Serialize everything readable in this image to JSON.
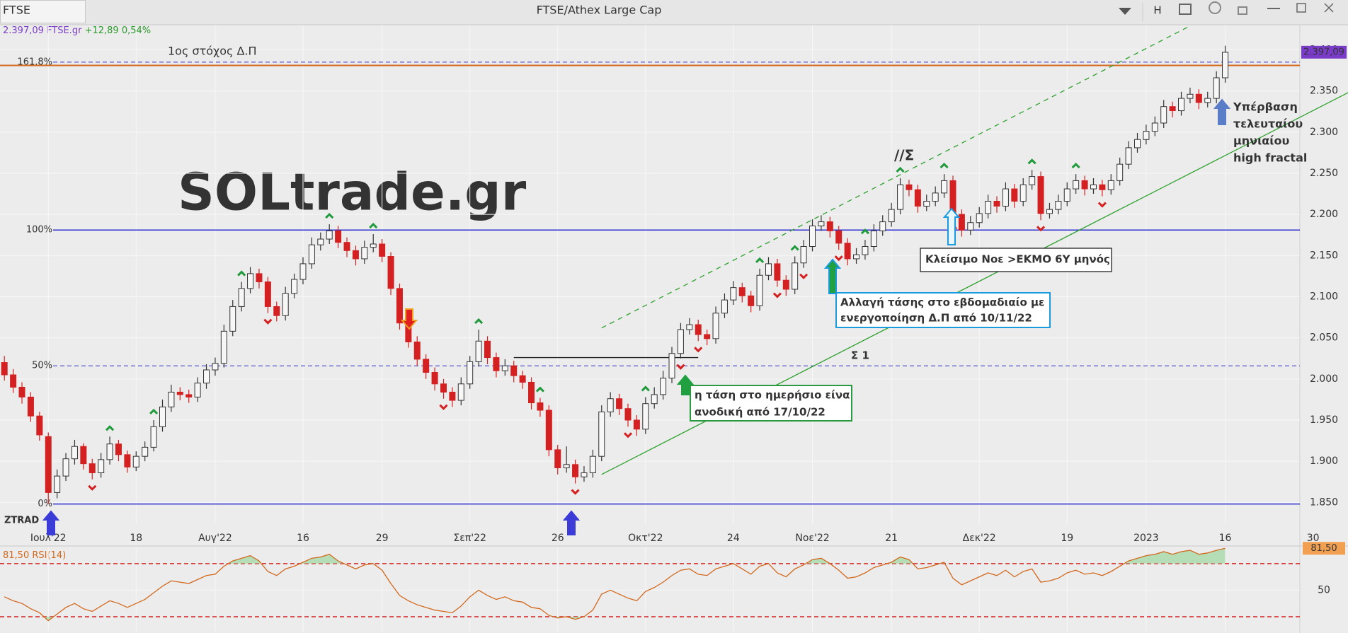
{
  "toolbar": {
    "symbol": "FTSE",
    "title": "FTSE/Athex Large Cap",
    "interval": "H"
  },
  "chart_data": {
    "type": "candlestick",
    "quote": {
      "last": {
        "value": 2397.09,
        "label": "2.397,09"
      },
      "symbol": "FTSE.gr",
      "change": {
        "value": 12.89,
        "label": "+12,89"
      },
      "change_pct": {
        "value": 0.54,
        "label": "0,54%"
      }
    },
    "watermark": "SOLtrade.gr",
    "watermark2": "ZTRAD",
    "xlim": [
      -0.5,
      147.5
    ],
    "xticks": [
      {
        "value": 5,
        "label": "Ιουλ'22"
      },
      {
        "value": 15,
        "label": "18"
      },
      {
        "value": 24,
        "label": "Αυγ'22"
      },
      {
        "value": 34,
        "label": "16"
      },
      {
        "value": 43,
        "label": "29"
      },
      {
        "value": 53,
        "label": "Σεπ'22"
      },
      {
        "value": 63,
        "label": "26"
      },
      {
        "value": 73,
        "label": "Οκτ'22"
      },
      {
        "value": 83,
        "label": "24"
      },
      {
        "value": 92,
        "label": "Νοε'22"
      },
      {
        "value": 101,
        "label": "21"
      },
      {
        "value": 111,
        "label": "Δεκ'22"
      },
      {
        "value": 121,
        "label": "19"
      },
      {
        "value": 130,
        "label": "2023"
      },
      {
        "value": 139,
        "label": "16"
      },
      {
        "value": 149,
        "label": "30"
      }
    ],
    "ylim": [
      1824.5,
      2429.6
    ],
    "yticks": [
      {
        "value": 1850,
        "label": "1.850"
      },
      {
        "value": 1900,
        "label": "1.900"
      },
      {
        "value": 1950,
        "label": "1.950"
      },
      {
        "value": 2000,
        "label": "2.000"
      },
      {
        "value": 2050,
        "label": "2.050"
      },
      {
        "value": 2100,
        "label": "2.100"
      },
      {
        "value": 2150,
        "label": "2.150"
      },
      {
        "value": 2200,
        "label": "2.200"
      },
      {
        "value": 2250,
        "label": "2.250"
      },
      {
        "value": 2300,
        "label": "2.300"
      },
      {
        "value": 2350,
        "label": "2.350"
      },
      {
        "value": 2400,
        "label": "2.400"
      }
    ],
    "up_color": "#f7f7f7",
    "down_color": "#d42020",
    "candles": [
      [
        2020,
        2028,
        1998,
        2005
      ],
      [
        2005,
        2012,
        1983,
        1990
      ],
      [
        1990,
        1996,
        1970,
        1978
      ],
      [
        1978,
        1984,
        1948,
        1955
      ],
      [
        1955,
        1960,
        1925,
        1932
      ],
      [
        1930,
        1935,
        1848,
        1862
      ],
      [
        1862,
        1890,
        1855,
        1882
      ],
      [
        1882,
        1910,
        1876,
        1903
      ],
      [
        1903,
        1926,
        1896,
        1918
      ],
      [
        1918,
        1922,
        1890,
        1897
      ],
      [
        1897,
        1903,
        1878,
        1886
      ],
      [
        1886,
        1910,
        1880,
        1902
      ],
      [
        1902,
        1930,
        1896,
        1921
      ],
      [
        1921,
        1926,
        1900,
        1908
      ],
      [
        1908,
        1913,
        1886,
        1893
      ],
      [
        1893,
        1912,
        1888,
        1906
      ],
      [
        1906,
        1924,
        1900,
        1917
      ],
      [
        1917,
        1950,
        1912,
        1942
      ],
      [
        1942,
        1975,
        1936,
        1966
      ],
      [
        1966,
        1993,
        1960,
        1984
      ],
      [
        1984,
        1990,
        1974,
        1981
      ],
      [
        1981,
        1987,
        1971,
        1978
      ],
      [
        1978,
        2002,
        1972,
        1995
      ],
      [
        1995,
        2018,
        1988,
        2011
      ],
      [
        2011,
        2026,
        2004,
        2019
      ],
      [
        2019,
        2066,
        2014,
        2058
      ],
      [
        2058,
        2096,
        2052,
        2088
      ],
      [
        2088,
        2118,
        2082,
        2110
      ],
      [
        2110,
        2136,
        2104,
        2128
      ],
      [
        2128,
        2134,
        2110,
        2118
      ],
      [
        2118,
        2124,
        2080,
        2088
      ],
      [
        2088,
        2094,
        2070,
        2077
      ],
      [
        2077,
        2112,
        2071,
        2104
      ],
      [
        2104,
        2128,
        2098,
        2121
      ],
      [
        2121,
        2148,
        2115,
        2140
      ],
      [
        2140,
        2172,
        2134,
        2163
      ],
      [
        2163,
        2178,
        2156,
        2170
      ],
      [
        2170,
        2188,
        2164,
        2180
      ],
      [
        2180,
        2186,
        2159,
        2166
      ],
      [
        2166,
        2172,
        2148,
        2156
      ],
      [
        2156,
        2162,
        2138,
        2146
      ],
      [
        2146,
        2168,
        2140,
        2160
      ],
      [
        2160,
        2176,
        2154,
        2164
      ],
      [
        2164,
        2170,
        2142,
        2149
      ],
      [
        2149,
        2154,
        2102,
        2110
      ],
      [
        2110,
        2116,
        2060,
        2068
      ],
      [
        2068,
        2074,
        2038,
        2045
      ],
      [
        2045,
        2052,
        2016,
        2024
      ],
      [
        2024,
        2030,
        2000,
        2008
      ],
      [
        2008,
        2014,
        1986,
        1994
      ],
      [
        1994,
        2000,
        1976,
        1984
      ],
      [
        1984,
        1990,
        1966,
        1974
      ],
      [
        1974,
        2002,
        1968,
        1994
      ],
      [
        1994,
        2028,
        1988,
        2021
      ],
      [
        2021,
        2060,
        2015,
        2046
      ],
      [
        2046,
        2052,
        2018,
        2026
      ],
      [
        2026,
        2032,
        2002,
        2010
      ],
      [
        2010,
        2024,
        2004,
        2016
      ],
      [
        2016,
        2022,
        1996,
        2004
      ],
      [
        2004,
        2010,
        1988,
        1996
      ],
      [
        1996,
        2002,
        1963,
        1971
      ],
      [
        1971,
        1977,
        1954,
        1962
      ],
      [
        1962,
        1968,
        1906,
        1914
      ],
      [
        1914,
        1920,
        1884,
        1892
      ],
      [
        1892,
        1918,
        1886,
        1896
      ],
      [
        1896,
        1902,
        1873,
        1881
      ],
      [
        1881,
        1894,
        1875,
        1886
      ],
      [
        1886,
        1914,
        1880,
        1906
      ],
      [
        1906,
        1968,
        1900,
        1960
      ],
      [
        1960,
        1984,
        1954,
        1976
      ],
      [
        1976,
        1982,
        1956,
        1964
      ],
      [
        1964,
        1970,
        1942,
        1950
      ],
      [
        1950,
        1956,
        1931,
        1939
      ],
      [
        1939,
        1978,
        1933,
        1970
      ],
      [
        1970,
        1990,
        1964,
        1981
      ],
      [
        1981,
        2010,
        1975,
        2001
      ],
      [
        2001,
        2039,
        1995,
        2031
      ],
      [
        2031,
        2068,
        2025,
        2060
      ],
      [
        2060,
        2074,
        2054,
        2066
      ],
      [
        2066,
        2072,
        2046,
        2054
      ],
      [
        2054,
        2060,
        2041,
        2049
      ],
      [
        2049,
        2088,
        2043,
        2080
      ],
      [
        2080,
        2104,
        2074,
        2096
      ],
      [
        2096,
        2119,
        2090,
        2111
      ],
      [
        2111,
        2117,
        2093,
        2101
      ],
      [
        2101,
        2107,
        2081,
        2089
      ],
      [
        2089,
        2134,
        2083,
        2126
      ],
      [
        2126,
        2148,
        2120,
        2140
      ],
      [
        2140,
        2146,
        2112,
        2120
      ],
      [
        2120,
        2126,
        2101,
        2109
      ],
      [
        2109,
        2149,
        2103,
        2141
      ],
      [
        2141,
        2169,
        2135,
        2161
      ],
      [
        2161,
        2194,
        2155,
        2186
      ],
      [
        2186,
        2199,
        2180,
        2191
      ],
      [
        2191,
        2197,
        2172,
        2180
      ],
      [
        2180,
        2186,
        2157,
        2165
      ],
      [
        2165,
        2171,
        2138,
        2146
      ],
      [
        2146,
        2159,
        2140,
        2151
      ],
      [
        2151,
        2169,
        2145,
        2161
      ],
      [
        2161,
        2188,
        2155,
        2180
      ],
      [
        2180,
        2199,
        2174,
        2191
      ],
      [
        2191,
        2214,
        2185,
        2206
      ],
      [
        2206,
        2244,
        2200,
        2236
      ],
      [
        2236,
        2242,
        2222,
        2230
      ],
      [
        2230,
        2236,
        2202,
        2210
      ],
      [
        2210,
        2224,
        2204,
        2216
      ],
      [
        2216,
        2234,
        2210,
        2226
      ],
      [
        2226,
        2249,
        2220,
        2241
      ],
      [
        2241,
        2247,
        2192,
        2200
      ],
      [
        2200,
        2206,
        2173,
        2181
      ],
      [
        2181,
        2198,
        2175,
        2190
      ],
      [
        2190,
        2209,
        2184,
        2201
      ],
      [
        2201,
        2224,
        2195,
        2216
      ],
      [
        2216,
        2222,
        2202,
        2210
      ],
      [
        2210,
        2239,
        2204,
        2231
      ],
      [
        2231,
        2237,
        2208,
        2216
      ],
      [
        2216,
        2244,
        2210,
        2236
      ],
      [
        2236,
        2254,
        2230,
        2246
      ],
      [
        2246,
        2252,
        2193,
        2201
      ],
      [
        2201,
        2214,
        2195,
        2206
      ],
      [
        2206,
        2224,
        2200,
        2216
      ],
      [
        2216,
        2239,
        2210,
        2231
      ],
      [
        2231,
        2249,
        2225,
        2241
      ],
      [
        2241,
        2247,
        2223,
        2231
      ],
      [
        2231,
        2244,
        2225,
        2236
      ],
      [
        2236,
        2242,
        2222,
        2230
      ],
      [
        2230,
        2249,
        2224,
        2241
      ],
      [
        2241,
        2269,
        2235,
        2261
      ],
      [
        2261,
        2289,
        2255,
        2281
      ],
      [
        2281,
        2299,
        2275,
        2291
      ],
      [
        2291,
        2309,
        2285,
        2301
      ],
      [
        2301,
        2319,
        2295,
        2311
      ],
      [
        2311,
        2339,
        2305,
        2331
      ],
      [
        2331,
        2337,
        2318,
        2326
      ],
      [
        2326,
        2349,
        2320,
        2341
      ],
      [
        2341,
        2354,
        2335,
        2346
      ],
      [
        2346,
        2352,
        2328,
        2336
      ],
      [
        2336,
        2349,
        2330,
        2341
      ],
      [
        2341,
        2374,
        2335,
        2366
      ],
      [
        2366,
        2405,
        2360,
        2397
      ]
    ],
    "up_fractals": [
      12,
      17,
      27,
      37,
      42,
      54,
      61,
      73,
      86,
      90,
      98,
      102,
      107,
      117,
      122
    ],
    "down_fractals": [
      10,
      30,
      50,
      65,
      71,
      77,
      79,
      88,
      91,
      95,
      108,
      118,
      125
    ],
    "levels": [
      {
        "label": "161.8%",
        "value": 2385,
        "dashed": true
      },
      {
        "label": "100%",
        "value": 2181,
        "dashed": false
      },
      {
        "label": "50%",
        "value": 2016,
        "dashed": true
      },
      {
        "label": "0%",
        "value": 1848,
        "dashed": false
      }
    ],
    "level_color": "#2f2fd0",
    "resistance": {
      "value": 2381,
      "color": "#d2691e"
    },
    "target_label": "1ος στόχος Δ.Π",
    "trend_lines": [
      {
        "from": [
          68,
          1884
        ],
        "to": [
          153,
          2348
        ],
        "color": "#2ca02c",
        "dashed": false
      },
      {
        "from": [
          68,
          2062
        ],
        "to": [
          135,
          2429
        ],
        "color": "#2ca02c",
        "dashed": true
      },
      {
        "from": [
          58,
          2026
        ],
        "to": [
          79,
          2026
        ],
        "color": "#222222",
        "dashed": false
      }
    ],
    "channel_labels": [
      "//Σ",
      "Σ 1"
    ],
    "notes": {
      "breakout": [
        "Υπέρβαση",
        "τελευταίου",
        "μηνιαίου",
        "high fractal"
      ],
      "close": "Κλείσιμο Νοε >ΕΚΜΟ 6Υ μηνός",
      "weekly": [
        "Αλλαγή τάσης στο εβδομαδιαίο με",
        "ενεργοποίηση Δ.Π από 10/11/22"
      ],
      "daily": [
        "η τάση στο ημερήσιο είνα",
        "ανοδική από 17/10/22"
      ]
    },
    "indicator": {
      "title": "RSI(14)",
      "last": {
        "value": 81.5,
        "label": "81,50"
      },
      "color": "#d2691e",
      "ylim": [
        18.8,
        82.7
      ],
      "yticks": [
        50
      ],
      "levels": [
        70,
        30
      ],
      "values": [
        45,
        42,
        40,
        36,
        33,
        27,
        32,
        37,
        40,
        36,
        34,
        38,
        42,
        40,
        37,
        40,
        43,
        48,
        53,
        57,
        56,
        55,
        58,
        61,
        62,
        68,
        72,
        74,
        76,
        72,
        64,
        61,
        66,
        68,
        71,
        74,
        75,
        77,
        72,
        69,
        66,
        69,
        70,
        65,
        55,
        46,
        42,
        39,
        37,
        35,
        34,
        33,
        38,
        45,
        50,
        46,
        43,
        45,
        42,
        41,
        37,
        36,
        31,
        29,
        30,
        28,
        30,
        35,
        47,
        50,
        47,
        44,
        42,
        49,
        52,
        56,
        61,
        65,
        66,
        62,
        61,
        66,
        68,
        70,
        66,
        62,
        68,
        70,
        63,
        60,
        66,
        69,
        73,
        74,
        70,
        65,
        59,
        60,
        63,
        67,
        69,
        71,
        75,
        73,
        66,
        67,
        69,
        71,
        59,
        54,
        57,
        60,
        63,
        61,
        65,
        60,
        64,
        66,
        56,
        57,
        59,
        63,
        65,
        62,
        63,
        61,
        64,
        68,
        72,
        74,
        76,
        77,
        79,
        77,
        79,
        80,
        77,
        78,
        80,
        81.5
      ]
    }
  }
}
